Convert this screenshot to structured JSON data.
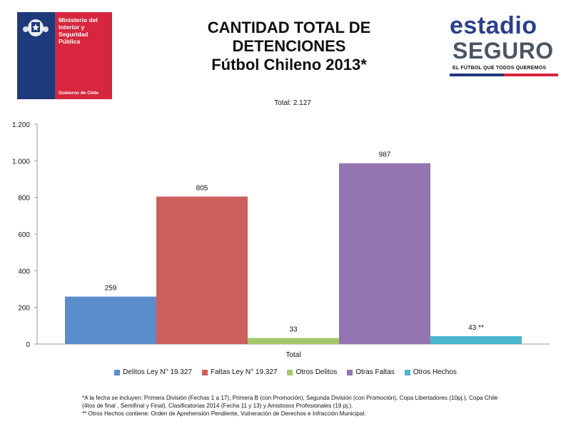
{
  "header": {
    "ministry_text": "Ministerio del\nInterior y\nSeguridad\nPública",
    "gobierno_text": "Gobierno de Chile",
    "title_line1": "CANTIDAD TOTAL DE",
    "title_line2": "DETENCIONES",
    "title_line3": "Fútbol Chileno 2013*",
    "brand_line1": "estadio",
    "brand_line2": "SEGURO",
    "brand_tagline": "EL FÚTBOL QUE TODOS QUEREMOS",
    "total_label": "Total: 2.127"
  },
  "colors": {
    "gov_blue": "#1f3a7a",
    "gov_red": "#d7263d",
    "brand_blue": "#2a3f8e",
    "brand_gray": "#4a5562"
  },
  "chart_data": {
    "type": "bar",
    "categories": [
      "Total"
    ],
    "xlabel": "Total",
    "ylabel": "",
    "ylim": [
      0,
      1200
    ],
    "yticks": [
      0,
      200,
      400,
      600,
      800,
      1000,
      1200
    ],
    "ytick_labels": [
      "0",
      "200",
      "400",
      "600",
      "800",
      "1.000",
      "1.200"
    ],
    "grid": false,
    "legend_position": "bottom",
    "series": [
      {
        "name": "Delitos Ley N° 19.327",
        "values": [
          259
        ],
        "label": "259",
        "color": "#5b8ccc"
      },
      {
        "name": "Faltas Ley N° 19.327",
        "values": [
          805
        ],
        "label": "805",
        "color": "#cc5f5b"
      },
      {
        "name": "Otros Delitos",
        "values": [
          33
        ],
        "label": "33",
        "color": "#a5c96a"
      },
      {
        "name": "Otras Faltas",
        "values": [
          987
        ],
        "label": "987",
        "color": "#9474b1"
      },
      {
        "name": "Otros Hechos",
        "values": [
          43
        ],
        "label": "43 **",
        "color": "#4ab7cf"
      }
    ]
  },
  "footnotes": {
    "note1": "*A la fecha se incluyen: Primera División (Fechas 1 a 17), Primera B (con Promoción), Segunda División (con Promoción), Copa Libertadores (10pj.), Copa Chile (4tos de final , Semifinal  y Final), Clasificatorias 2014 (Fecha 11 y 13) y Amistosos Profesionales (19 pj.).",
    "note2": "** Otros Hechos contiene: Orden de Aprehensión Pendiente, Vulneración de Derechos e Infracción Municipal."
  }
}
